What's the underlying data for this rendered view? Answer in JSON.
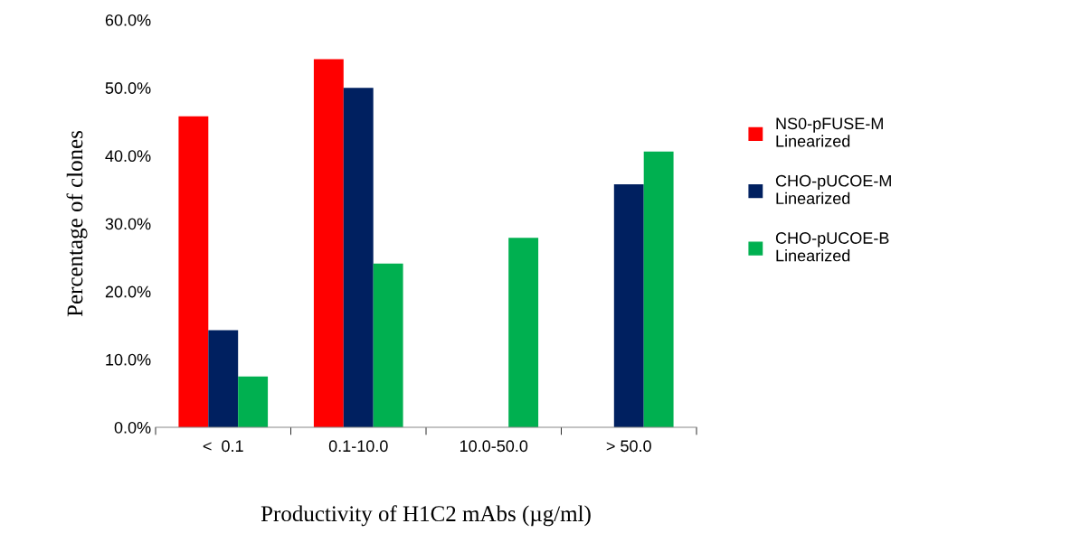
{
  "chart_data": {
    "type": "bar",
    "xlabel": "Productivity of H1C2 mAbs (µg/ml)",
    "ylabel": "Percentage of clones",
    "categories": [
      "<  0.1",
      "0.1-10.0",
      "10.0-50.0",
      "> 50.0"
    ],
    "series": [
      {
        "name": "NS0-pFUSE-M\nLinearized",
        "color": "#ff0000",
        "values": [
          45.8,
          54.2,
          0,
          0
        ]
      },
      {
        "name": "CHO-pUCOE-M\nLinearized",
        "color": "#002060",
        "values": [
          14.3,
          50.0,
          0,
          35.8
        ]
      },
      {
        "name": "CHO-pUCOE-B\nLinearized",
        "color": "#00b050",
        "values": [
          7.5,
          24.1,
          27.9,
          40.6
        ]
      }
    ],
    "ylim": [
      0,
      60
    ],
    "yticks": [
      {
        "value": 0,
        "label": "0.0%"
      },
      {
        "value": 10,
        "label": "10.0%"
      },
      {
        "value": 20,
        "label": "20.0%"
      },
      {
        "value": 30,
        "label": "30.0%"
      },
      {
        "value": 40,
        "label": "40.0%"
      },
      {
        "value": 50,
        "label": "50.0%"
      },
      {
        "value": 60,
        "label": "60.0%"
      }
    ],
    "grid": false,
    "legend": "right"
  }
}
